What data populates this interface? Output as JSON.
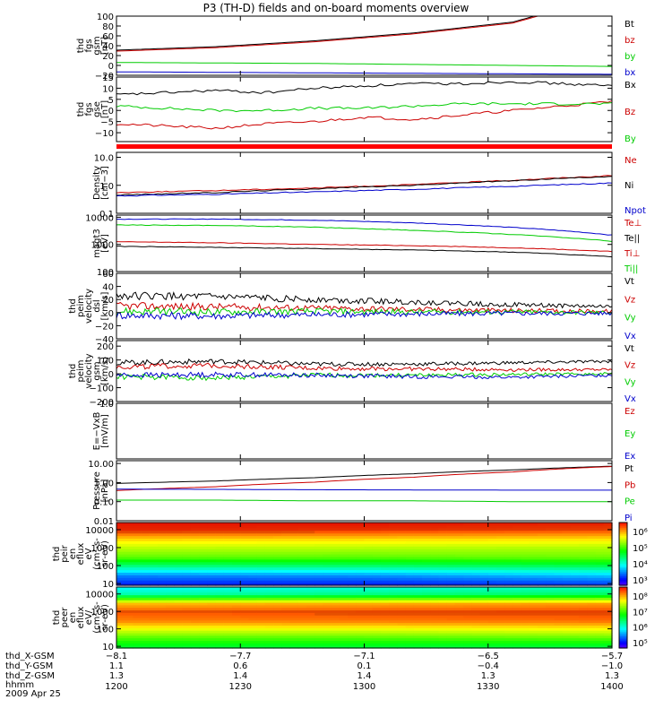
{
  "title": "P3 (TH-D) fields and on-board moments overview",
  "colors": {
    "black": "#000000",
    "red": "#cc0000",
    "green": "#00cc00",
    "blue": "#0000cc",
    "flag": "#ff0000"
  },
  "chart_data": [
    {
      "id": "fgs_gsm",
      "type": "line",
      "ylabel": [
        "thd",
        "fgs",
        "gsm",
        "[nT]"
      ],
      "yticks": [
        "100",
        "80",
        "60",
        "40",
        "20",
        "0",
        "−20"
      ],
      "ylim": [
        -20,
        100
      ],
      "legend": [
        {
          "label": "Bt",
          "color": "black"
        },
        {
          "label": "bz",
          "color": "red"
        },
        {
          "label": "by",
          "color": "green"
        },
        {
          "label": "bx",
          "color": "blue"
        }
      ],
      "series": [
        {
          "color": "black",
          "x": [
            0,
            60,
            120,
            180,
            240,
            255
          ],
          "y": [
            31,
            38,
            50,
            66,
            88,
            102
          ]
        },
        {
          "color": "red",
          "x": [
            0,
            60,
            120,
            180,
            240,
            255
          ],
          "y": [
            29,
            36,
            48,
            64,
            86,
            100
          ]
        },
        {
          "color": "green",
          "x": [
            0,
            60,
            120,
            180,
            240,
            300
          ],
          "y": [
            6,
            5,
            4,
            2,
            0,
            -2
          ]
        },
        {
          "color": "blue",
          "x": [
            0,
            60,
            120,
            180,
            240,
            300
          ],
          "y": [
            -13,
            -14,
            -15,
            -16,
            -17,
            -18
          ]
        }
      ]
    },
    {
      "id": "fgs_gse",
      "type": "line",
      "ylabel": [
        "thd",
        "fgs",
        "gse",
        "[nT]"
      ],
      "yticks": [
        "15",
        "10",
        "5",
        "0",
        "−5",
        "−10"
      ],
      "ylim": [
        -14,
        15
      ],
      "legend": [
        {
          "label": "Bx",
          "color": "black"
        },
        {
          "label": "Bz",
          "color": "red"
        },
        {
          "label": "By",
          "color": "green"
        }
      ],
      "series": [
        {
          "color": "black",
          "x": [
            0,
            30,
            60,
            90,
            120,
            150,
            180,
            210,
            240,
            270,
            300
          ],
          "y": [
            7,
            8,
            9,
            8,
            10,
            11,
            12,
            12,
            13,
            12,
            11
          ]
        },
        {
          "color": "red",
          "x": [
            0,
            30,
            60,
            90,
            120,
            150,
            180,
            210,
            240,
            270,
            300
          ],
          "y": [
            -6,
            -7,
            -8,
            -6,
            -5,
            -3,
            -4,
            -2,
            0,
            2,
            4
          ]
        },
        {
          "color": "green",
          "x": [
            0,
            30,
            60,
            90,
            120,
            150,
            180,
            210,
            240,
            270,
            300
          ],
          "y": [
            2,
            1,
            0,
            0,
            1,
            1,
            2,
            3,
            3,
            3,
            3
          ]
        }
      ]
    },
    {
      "id": "density",
      "type": "line",
      "ylabel": [
        "Density",
        "[cm−3]"
      ],
      "yticks": [
        "10.0",
        "1.0",
        "0.1"
      ],
      "ylim": [
        0.1,
        15
      ],
      "yscale": "log",
      "legend": [
        {
          "label": "Ne",
          "color": "red"
        },
        {
          "label": "Ni",
          "color": "black"
        },
        {
          "label": "Npot",
          "color": "blue"
        }
      ],
      "series": [
        {
          "color": "red",
          "x": [
            0,
            60,
            120,
            180,
            240,
            300
          ],
          "y": [
            0.55,
            0.65,
            0.8,
            1.05,
            1.5,
            2.2
          ]
        },
        {
          "color": "black",
          "x": [
            0,
            60,
            120,
            180,
            240,
            300
          ],
          "y": [
            0.45,
            0.55,
            0.75,
            1.0,
            1.45,
            2.1
          ]
        },
        {
          "color": "blue",
          "x": [
            0,
            60,
            120,
            180,
            240,
            300
          ],
          "y": [
            0.42,
            0.48,
            0.58,
            0.72,
            0.92,
            1.2
          ]
        }
      ]
    },
    {
      "id": "temperature",
      "type": "line",
      "ylabel": [
        "magt3",
        "[eV]"
      ],
      "yticks": [
        "10000",
        "1000",
        "100"
      ],
      "ylim": [
        100,
        12000
      ],
      "yscale": "log",
      "legend": [
        {
          "label": "Te⊥",
          "color": "red"
        },
        {
          "label": "Te||",
          "color": "black"
        },
        {
          "label": "Ti⊥",
          "color": "red"
        },
        {
          "label": "Ti||",
          "color": "green"
        }
      ],
      "series": [
        {
          "color": "blue",
          "x": [
            0,
            60,
            120,
            180,
            240,
            300
          ],
          "y": [
            8500,
            8600,
            7800,
            6200,
            4200,
            2200
          ]
        },
        {
          "color": "green",
          "x": [
            0,
            60,
            120,
            180,
            240,
            300
          ],
          "y": [
            5200,
            5000,
            4300,
            3300,
            2300,
            1300
          ]
        },
        {
          "color": "red",
          "x": [
            0,
            60,
            120,
            180,
            240,
            300
          ],
          "y": [
            1250,
            1150,
            1000,
            900,
            750,
            550
          ]
        },
        {
          "color": "black",
          "x": [
            0,
            60,
            120,
            180,
            240,
            300
          ],
          "y": [
            850,
            780,
            700,
            620,
            520,
            350
          ]
        }
      ]
    },
    {
      "id": "peim_dsl",
      "type": "line",
      "ylabel": [
        "thd",
        "peim",
        "velocity",
        "dsl",
        "[km/s]"
      ],
      "yticks": [
        "60",
        "40",
        "20",
        "0",
        "−20",
        "−40"
      ],
      "ylim": [
        -40,
        60
      ],
      "legend": [
        {
          "label": "Vt",
          "color": "black"
        },
        {
          "label": "Vz",
          "color": "red"
        },
        {
          "label": "Vy",
          "color": "green"
        },
        {
          "label": "Vx",
          "color": "blue"
        }
      ],
      "series": [
        {
          "color": "black",
          "x": [
            0,
            60,
            120,
            180,
            240,
            300
          ],
          "y": [
            26,
            24,
            20,
            16,
            12,
            9
          ]
        },
        {
          "color": "red",
          "x": [
            0,
            60,
            120,
            180,
            240,
            300
          ],
          "y": [
            10,
            9,
            7,
            5,
            3,
            2
          ]
        },
        {
          "color": "green",
          "x": [
            0,
            60,
            120,
            180,
            240,
            300
          ],
          "y": [
            2,
            1,
            2,
            1,
            1,
            0
          ]
        },
        {
          "color": "blue",
          "x": [
            0,
            60,
            120,
            180,
            240,
            300
          ],
          "y": [
            -4,
            -5,
            -3,
            -2,
            -1,
            -1
          ]
        }
      ]
    },
    {
      "id": "peim_gsm",
      "type": "line",
      "ylabel": [
        "thd",
        "peim",
        "velocity",
        "gsm",
        "[km/s]"
      ],
      "yticks": [
        "200",
        "100",
        "0",
        "−100",
        "−200"
      ],
      "ylim": [
        -200,
        240
      ],
      "legend": [
        {
          "label": "Vt",
          "color": "black"
        },
        {
          "label": "Vz",
          "color": "red"
        },
        {
          "label": "Vy",
          "color": "green"
        },
        {
          "label": "Vx",
          "color": "blue"
        }
      ],
      "series": [
        {
          "color": "black",
          "x": [
            0,
            60,
            120,
            180,
            240,
            300
          ],
          "y": [
            80,
            90,
            70,
            70,
            80,
            90
          ]
        },
        {
          "color": "red",
          "x": [
            0,
            60,
            120,
            180,
            240,
            300
          ],
          "y": [
            50,
            60,
            40,
            35,
            30,
            30
          ]
        },
        {
          "color": "green",
          "x": [
            0,
            60,
            120,
            180,
            240,
            300
          ],
          "y": [
            -20,
            -30,
            -10,
            -10,
            -5,
            0
          ]
        },
        {
          "color": "blue",
          "x": [
            0,
            60,
            120,
            180,
            240,
            300
          ],
          "y": [
            -10,
            -5,
            -10,
            -20,
            -25,
            -10
          ]
        }
      ]
    },
    {
      "id": "efield",
      "type": "line",
      "ylabel": [
        "E=−VxB",
        "[mV/m]"
      ],
      "yticks": [
        "1.0"
      ],
      "ylim": [
        -1,
        1
      ],
      "legend": [
        {
          "label": "Ez",
          "color": "red"
        },
        {
          "label": "Ey",
          "color": "green"
        },
        {
          "label": "Ex",
          "color": "blue"
        }
      ],
      "series": []
    },
    {
      "id": "pressure",
      "type": "line",
      "ylabel": [
        "Pressure",
        "[nPa]"
      ],
      "yticks": [
        "10.00",
        "1.00",
        "0.10",
        "0.01"
      ],
      "ylim": [
        0.01,
        14
      ],
      "yscale": "log",
      "legend": [
        {
          "label": "Pt",
          "color": "black"
        },
        {
          "label": "Pb",
          "color": "red"
        },
        {
          "label": "Pe",
          "color": "green"
        },
        {
          "label": "Pi",
          "color": "blue"
        }
      ],
      "series": [
        {
          "color": "black",
          "x": [
            0,
            60,
            120,
            180,
            240,
            300
          ],
          "y": [
            0.9,
            1.2,
            1.8,
            2.9,
            4.6,
            7.2
          ]
        },
        {
          "color": "red",
          "x": [
            0,
            60,
            120,
            180,
            240,
            300
          ],
          "y": [
            0.38,
            0.6,
            1.05,
            1.9,
            3.6,
            6.9
          ]
        },
        {
          "color": "blue",
          "x": [
            0,
            60,
            120,
            180,
            240,
            300
          ],
          "y": [
            0.45,
            0.44,
            0.42,
            0.41,
            0.4,
            0.4
          ]
        },
        {
          "color": "green",
          "x": [
            0,
            60,
            120,
            180,
            240,
            300
          ],
          "y": [
            0.12,
            0.12,
            0.11,
            0.11,
            0.1,
            0.1
          ]
        }
      ]
    },
    {
      "id": "peir_spec",
      "type": "heatmap",
      "ylabel": [
        "thd",
        "peir",
        "en",
        "eflux",
        "eV",
        "(cm²‑s‑",
        "sr‑eV)"
      ],
      "yticks": [
        "10000",
        "1000",
        "100",
        "10"
      ],
      "ylim": [
        8,
        25000
      ],
      "yscale": "log",
      "colorbar_ticks": [
        "10⁶",
        "10⁵",
        "10⁴",
        "10³"
      ],
      "colorbar_range": [
        100,
        3000000
      ],
      "x": [
        0,
        60,
        120,
        180,
        240,
        300
      ],
      "energies": [
        10,
        30,
        100,
        300,
        1000,
        3000,
        10000,
        25000
      ],
      "values": [
        [
          300,
          800,
          8000,
          60000,
          150000,
          400000,
          2000000,
          2500000
        ],
        [
          300,
          900,
          9000,
          60000,
          140000,
          380000,
          1800000,
          2500000
        ],
        [
          400,
          1500,
          12000,
          70000,
          130000,
          350000,
          1500000,
          2200000
        ],
        [
          600,
          2500,
          20000,
          90000,
          120000,
          300000,
          1200000,
          2000000
        ],
        [
          800,
          4000,
          30000,
          100000,
          110000,
          280000,
          1000000,
          1800000
        ],
        [
          1000,
          6000,
          40000,
          110000,
          100000,
          250000,
          900000,
          1600000
        ]
      ]
    },
    {
      "id": "peer_spec",
      "type": "heatmap",
      "ylabel": [
        "thd",
        "peer",
        "en",
        "eflux",
        "eV/",
        "(cm²‑s‑",
        "sr‑eV)"
      ],
      "yticks": [
        "10000",
        "1000",
        "100",
        "10"
      ],
      "ylim": [
        8,
        25000
      ],
      "yscale": "log",
      "colorbar_ticks": [
        "10⁸",
        "10⁷",
        "10⁶",
        "10⁵"
      ],
      "colorbar_range": [
        30000,
        300000000
      ],
      "x": [
        0,
        60,
        120,
        180,
        240,
        300
      ],
      "energies": [
        10,
        30,
        100,
        300,
        1000,
        3000,
        10000,
        25000
      ],
      "values": [
        [
          3000000,
          8000000,
          30000000,
          100000000,
          150000000,
          60000000,
          1000000,
          500000
        ],
        [
          2800000,
          8000000,
          30000000,
          110000000,
          160000000,
          70000000,
          1500000,
          700000
        ],
        [
          2600000,
          9000000,
          35000000,
          120000000,
          170000000,
          80000000,
          2000000,
          900000
        ],
        [
          3000000,
          10000000,
          40000000,
          120000000,
          170000000,
          90000000,
          3000000,
          1200000
        ],
        [
          3500000,
          12000000,
          45000000,
          130000000,
          180000000,
          100000000,
          4000000,
          1500000
        ],
        [
          4000000,
          14000000,
          50000000,
          140000000,
          190000000,
          110000000,
          5000000,
          2000000
        ]
      ]
    }
  ],
  "ephemeris": {
    "labels": [
      "thd_X-GSM",
      "thd_Y-GSM",
      "thd_Z-GSM",
      "hhmm",
      "2009 Apr 25"
    ],
    "columns": [
      {
        "x": "-8.1",
        "y": "1.1",
        "z": "1.3",
        "hhmm": "1200"
      },
      {
        "x": "-7.7",
        "y": "0.6",
        "z": "1.4",
        "hhmm": "1230"
      },
      {
        "x": "-7.1",
        "y": "0.1",
        "z": "1.4",
        "hhmm": "1300"
      },
      {
        "x": "-6.5",
        "y": "-0.4",
        "z": "1.3",
        "hhmm": "1330"
      },
      {
        "x": "-5.7",
        "y": "-1.0",
        "z": "1.3",
        "hhmm": "1400"
      }
    ]
  }
}
